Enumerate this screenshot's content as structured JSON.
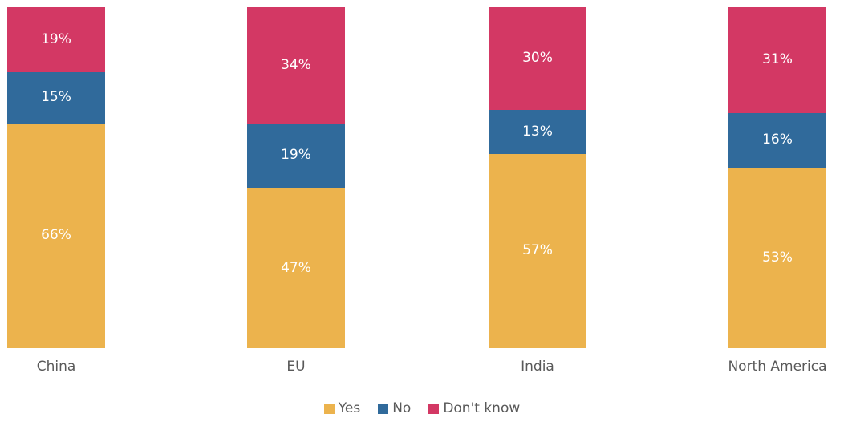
{
  "chart_data": {
    "type": "bar",
    "variant": "stacked-column-100",
    "title": "",
    "xlabel": "",
    "ylabel": "",
    "categories": [
      "China",
      "EU",
      "India",
      "North America"
    ],
    "series": [
      {
        "name": "Yes",
        "color": "#ECB34D",
        "values": [
          66,
          47,
          57,
          53
        ]
      },
      {
        "name": "No",
        "color": "#306A9B",
        "values": [
          15,
          19,
          13,
          16
        ]
      },
      {
        "name": "Don't know",
        "color": "#D33864",
        "values": [
          19,
          34,
          30,
          31
        ]
      }
    ],
    "stack_order_top_to_bottom": [
      "Don't know",
      "No",
      "Yes"
    ],
    "data_labels": "percent-inside-centered",
    "value_suffix": "%",
    "ylim": [
      0,
      100
    ],
    "grid": false,
    "axes_visible": false,
    "legend_position": "bottom-center",
    "legend": [
      "Yes",
      "No",
      "Don't know"
    ]
  },
  "styles": {
    "background": "#FFFFFF",
    "category_label_color": "#595959",
    "legend_text_color": "#595959",
    "data_label_color": "#FFFFFF"
  }
}
